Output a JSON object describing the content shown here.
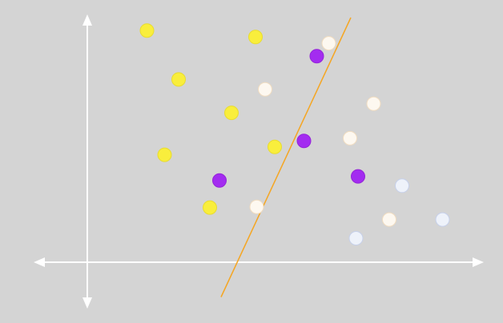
{
  "chart_data": {
    "type": "scatter",
    "title": "",
    "xlabel": "",
    "ylabel": "",
    "xlim": [
      0,
      10
    ],
    "ylim": [
      0,
      10
    ],
    "grid": false,
    "axes_color": "#ffffff",
    "separator": {
      "color": "#f5a623",
      "points": [
        [
          3.34,
          -1.45
        ],
        [
          6.58,
          10.2
        ]
      ]
    },
    "series": [
      {
        "color": "#f9ee3c",
        "stroke": "#e8dc30",
        "points": [
          [
            1.49,
            9.66
          ],
          [
            2.28,
            7.62
          ],
          [
            1.93,
            4.48
          ],
          [
            3.6,
            6.23
          ],
          [
            4.2,
            9.39
          ],
          [
            4.68,
            4.81
          ],
          [
            3.06,
            2.28
          ]
        ]
      },
      {
        "color": "#a32cf0",
        "stroke": "#9424d8",
        "points": [
          [
            5.73,
            8.59
          ],
          [
            5.41,
            5.06
          ],
          [
            3.3,
            3.41
          ],
          [
            6.76,
            3.58
          ]
        ]
      },
      {
        "color": "#fdf8f0",
        "stroke": "#f0dcc0",
        "points": [
          [
            6.03,
            9.13
          ],
          [
            4.44,
            7.21
          ],
          [
            7.15,
            6.61
          ],
          [
            6.56,
            5.17
          ],
          [
            4.23,
            2.31
          ],
          [
            7.54,
            1.78
          ]
        ]
      },
      {
        "color": "#eef2fa",
        "stroke": "#c6d0ea",
        "points": [
          [
            7.86,
            3.19
          ],
          [
            6.71,
            1.0
          ],
          [
            8.87,
            1.78
          ]
        ]
      }
    ]
  }
}
